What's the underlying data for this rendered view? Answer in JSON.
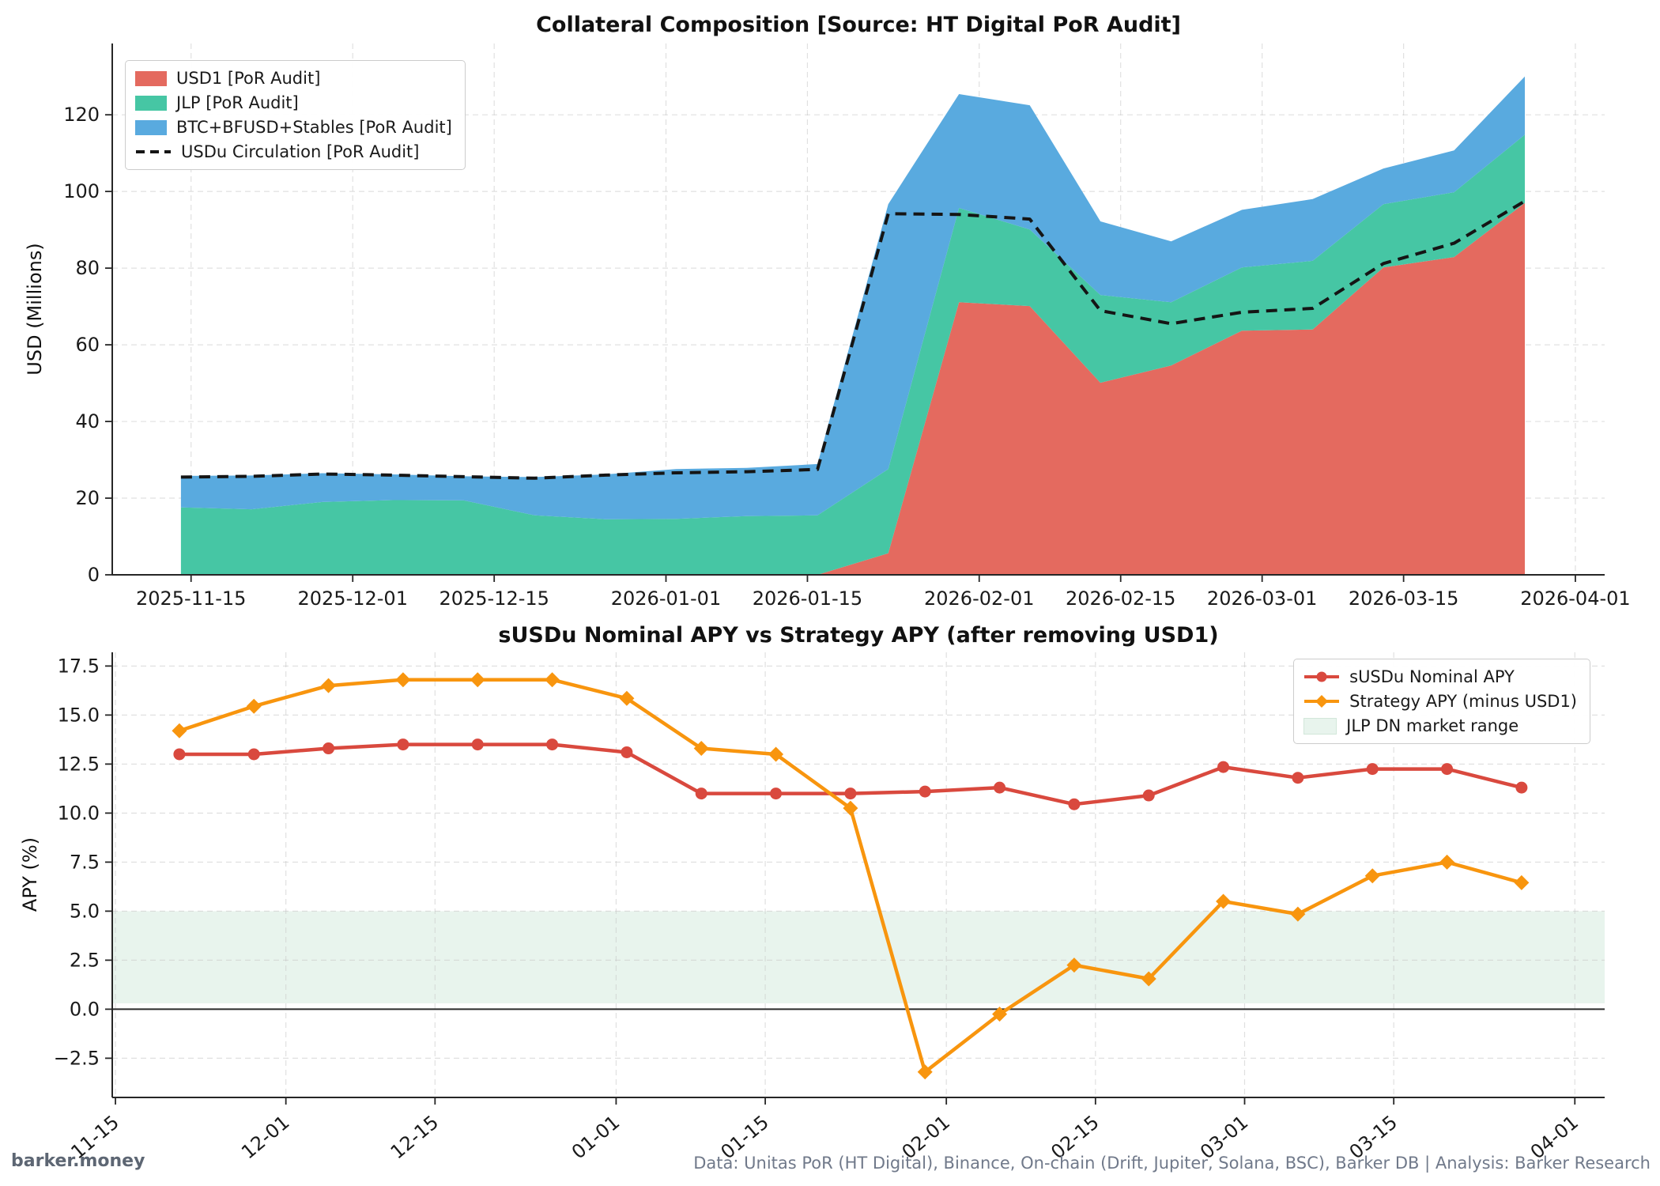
{
  "page": {
    "footer_left": "barker.money",
    "footer_right": "Data: Unitas PoR (HT Digital), Binance, On-chain (Drift, Jupiter, Solana, BSC), Barker DB  |  Analysis: Barker Research"
  },
  "colors": {
    "usd1_area": "#E46A5F",
    "jlp_area": "#46C6A4",
    "btc_area": "#59AADF",
    "usdu_line": "#151515",
    "nominal_line": "#D9493E",
    "strategy_line": "#F8950E",
    "band_fill": "#E8F4ED",
    "grid": "#c8c8c8",
    "spine": "#262626"
  },
  "chart_data": [
    {
      "type": "area",
      "stacked": true,
      "title": "Collateral Composition [Source: HT Digital PoR Audit]",
      "ylabel": "USD (Millions)",
      "ylim": [
        0,
        138.6
      ],
      "xlim_days": [
        -7.8,
        139.9
      ],
      "grid": true,
      "legend_position": "upper-left",
      "x_dates": [
        "2025-11-14",
        "2025-11-21",
        "2025-11-28",
        "2025-12-05",
        "2025-12-12",
        "2025-12-19",
        "2025-12-26",
        "2026-01-02",
        "2026-01-09",
        "2026-01-16",
        "2026-01-23",
        "2026-01-30",
        "2026-02-06",
        "2026-02-13",
        "2026-02-20",
        "2026-02-27",
        "2026-03-06",
        "2026-03-13",
        "2026-03-20",
        "2026-03-27"
      ],
      "series": [
        {
          "name": "USD1 [PoR Audit]",
          "color": "#E46A5F",
          "values": [
            0,
            0,
            0,
            0,
            0,
            0,
            0,
            0,
            0,
            0,
            5.6,
            71.1,
            70.1,
            50.1,
            54.6,
            63.7,
            64.0,
            80.2,
            82.9,
            97.0
          ]
        },
        {
          "name": "JLP [PoR Audit]",
          "color": "#46C6A4",
          "values": [
            17.6,
            17.1,
            19.0,
            19.5,
            19.4,
            15.5,
            14.5,
            14.6,
            15.3,
            15.5,
            22.0,
            24.6,
            20.0,
            22.9,
            16.5,
            16.5,
            17.9,
            16.5,
            16.9,
            17.8
          ]
        },
        {
          "name": "BTC+BFUSD+Stables [PoR Audit]",
          "color": "#59AADF",
          "values": [
            8.2,
            8.8,
            7.5,
            6.7,
            6.3,
            10.0,
            11.7,
            13.0,
            12.6,
            13.4,
            69.1,
            29.7,
            32.4,
            19.2,
            15.9,
            15.0,
            16.1,
            9.3,
            10.9,
            15.2
          ]
        }
      ],
      "line_series": {
        "name": "USDu Circulation [PoR Audit]",
        "color": "#151515",
        "dashed": true,
        "values": [
          25.5,
          25.7,
          26.3,
          26.0,
          25.6,
          25.2,
          26.0,
          26.6,
          26.9,
          27.5,
          94.2,
          94.0,
          92.8,
          68.9,
          65.5,
          68.5,
          69.5,
          81.2,
          86.5,
          97.5
        ]
      },
      "yticks": [
        {
          "v": 0,
          "label": "0"
        },
        {
          "v": 20,
          "label": "20"
        },
        {
          "v": 40,
          "label": "40"
        },
        {
          "v": 60,
          "label": "60"
        },
        {
          "v": 80,
          "label": "80"
        },
        {
          "v": 100,
          "label": "100"
        },
        {
          "v": 120,
          "label": "120"
        }
      ],
      "xticks": [
        {
          "d": "2025-11-15",
          "label": "2025-11-15"
        },
        {
          "d": "2025-12-01",
          "label": "2025-12-01"
        },
        {
          "d": "2025-12-15",
          "label": "2025-12-15"
        },
        {
          "d": "2026-01-01",
          "label": "2026-01-01"
        },
        {
          "d": "2026-01-15",
          "label": "2026-01-15"
        },
        {
          "d": "2026-02-01",
          "label": "2026-02-01"
        },
        {
          "d": "2026-02-15",
          "label": "2026-02-15"
        },
        {
          "d": "2026-03-01",
          "label": "2026-03-01"
        },
        {
          "d": "2026-03-15",
          "label": "2026-03-15"
        },
        {
          "d": "2026-04-01",
          "label": "2026-04-01"
        }
      ]
    },
    {
      "type": "line",
      "stacked": false,
      "title": "sUSDu Nominal APY vs Strategy APY (after removing USD1)",
      "ylabel": "APY (%)",
      "ylim": [
        -4.5,
        18.2
      ],
      "xlim_days": [
        -0.3,
        139.8
      ],
      "grid": true,
      "zero_line": 0.0,
      "legend_position": "upper-right",
      "x_dates": [
        "2025-11-21",
        "2025-11-28",
        "2025-12-05",
        "2025-12-12",
        "2025-12-19",
        "2025-12-26",
        "2026-01-02",
        "2026-01-09",
        "2026-01-16",
        "2026-01-23",
        "2026-01-30",
        "2026-02-06",
        "2026-02-13",
        "2026-02-20",
        "2026-02-27",
        "2026-03-06",
        "2026-03-13",
        "2026-03-20",
        "2026-03-27"
      ],
      "series": [
        {
          "name": "sUSDu Nominal APY",
          "color": "#D9493E",
          "marker": "circle",
          "values": [
            13.0,
            13.0,
            13.3,
            13.5,
            13.5,
            13.5,
            13.1,
            11.0,
            11.0,
            11.0,
            11.1,
            11.3,
            10.45,
            10.9,
            12.35,
            11.8,
            12.25,
            12.25,
            11.3
          ]
        },
        {
          "name": "Strategy APY (minus USD1)",
          "color": "#F8950E",
          "marker": "diamond",
          "values": [
            14.2,
            15.45,
            16.5,
            16.8,
            16.8,
            16.8,
            15.85,
            13.3,
            13.0,
            10.25,
            -3.2,
            -0.25,
            2.25,
            1.55,
            5.5,
            4.85,
            6.8,
            7.5,
            6.45
          ]
        }
      ],
      "band": {
        "name": "JLP DN market range",
        "color": "#E8F4ED",
        "edge": "#d2e7da",
        "range": [
          0.3,
          5.0
        ]
      },
      "yticks": [
        {
          "v": -2.5,
          "label": "−2.5"
        },
        {
          "v": 0.0,
          "label": "0.0"
        },
        {
          "v": 2.5,
          "label": "2.5"
        },
        {
          "v": 5.0,
          "label": "5.0"
        },
        {
          "v": 7.5,
          "label": "7.5"
        },
        {
          "v": 10.0,
          "label": "10.0"
        },
        {
          "v": 12.5,
          "label": "12.5"
        },
        {
          "v": 15.0,
          "label": "15.0"
        },
        {
          "v": 17.5,
          "label": "17.5"
        }
      ],
      "xticks": [
        {
          "d": "2025-11-15",
          "label": "11-15"
        },
        {
          "d": "2025-12-01",
          "label": "12-01"
        },
        {
          "d": "2025-12-15",
          "label": "12-15"
        },
        {
          "d": "2026-01-01",
          "label": "01-01"
        },
        {
          "d": "2026-01-15",
          "label": "01-15"
        },
        {
          "d": "2026-02-01",
          "label": "02-01"
        },
        {
          "d": "2026-02-15",
          "label": "02-15"
        },
        {
          "d": "2026-03-01",
          "label": "03-01"
        },
        {
          "d": "2026-03-15",
          "label": "03-15"
        },
        {
          "d": "2026-04-01",
          "label": "04-01"
        }
      ]
    }
  ]
}
